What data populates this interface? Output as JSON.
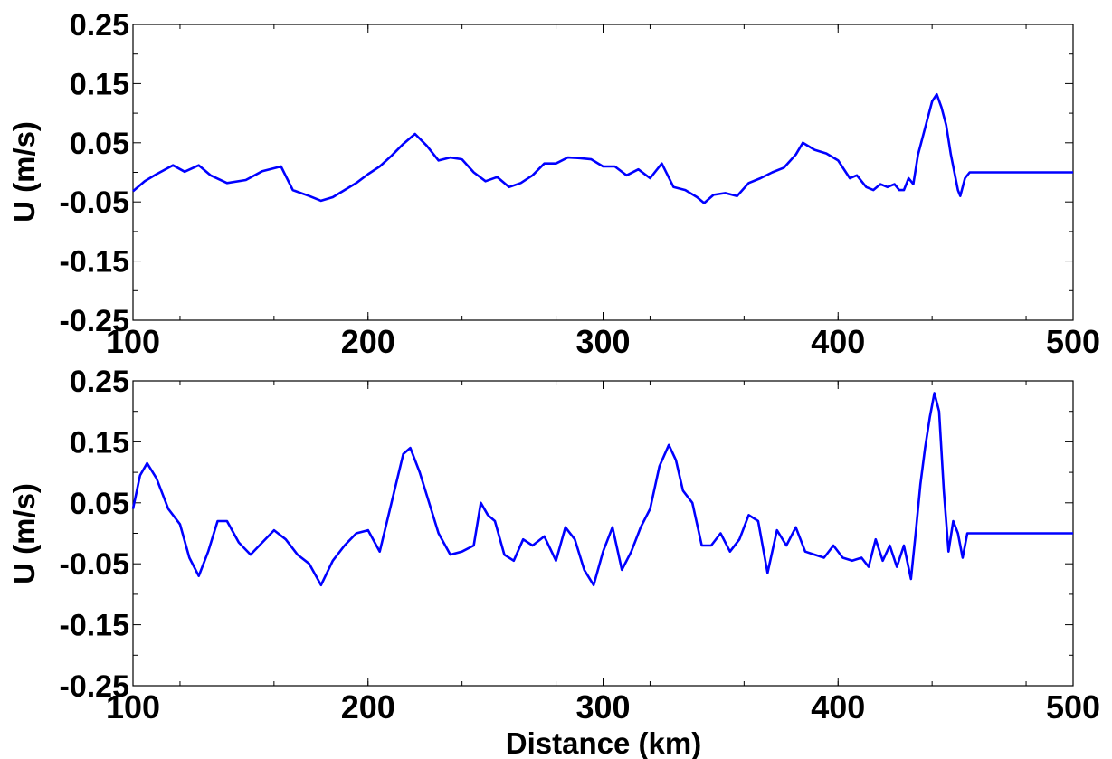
{
  "figure": {
    "xlabel": "Distance (km)"
  },
  "chart_data": [
    {
      "type": "line",
      "title": "",
      "xlabel": "",
      "ylabel": "U (m/s)",
      "xlim": [
        100,
        500
      ],
      "ylim": [
        -0.25,
        0.25
      ],
      "xticks": [
        "100",
        "200",
        "300",
        "400",
        "500"
      ],
      "yticks": [
        "0.25",
        "0.15",
        "0.05",
        "-0.05",
        "-0.15",
        "-0.25"
      ],
      "grid": false,
      "color": "#0000ff",
      "series": [
        {
          "x": [
            100,
            105,
            110,
            117,
            122,
            128,
            133,
            140,
            148,
            155,
            163,
            168,
            175,
            180,
            185,
            190,
            195,
            200,
            205,
            210,
            215,
            220,
            225,
            230,
            235,
            240,
            245,
            250,
            255,
            260,
            265,
            270,
            275,
            280,
            285,
            290,
            295,
            300,
            305,
            310,
            315,
            320,
            325,
            330,
            335,
            340,
            343,
            347,
            352,
            357,
            362,
            367,
            372,
            377,
            382,
            385,
            390,
            395,
            400,
            405,
            408,
            412,
            415,
            418,
            421,
            424,
            426,
            428,
            430,
            432,
            434,
            436,
            438,
            440,
            442,
            444,
            446,
            448,
            450,
            451,
            452,
            454,
            456,
            460,
            480,
            500
          ],
          "y": [
            -0.032,
            -0.015,
            -0.003,
            0.012,
            0.001,
            0.012,
            -0.005,
            -0.018,
            -0.013,
            0.002,
            0.01,
            -0.03,
            -0.04,
            -0.048,
            -0.042,
            -0.03,
            -0.018,
            -0.003,
            0.01,
            0.028,
            0.048,
            0.065,
            0.045,
            0.02,
            0.025,
            0.022,
            0.0,
            -0.015,
            -0.008,
            -0.025,
            -0.018,
            -0.005,
            0.015,
            0.015,
            0.025,
            0.024,
            0.022,
            0.01,
            0.01,
            -0.005,
            0.005,
            -0.01,
            0.015,
            -0.025,
            -0.03,
            -0.042,
            -0.052,
            -0.038,
            -0.035,
            -0.04,
            -0.018,
            -0.01,
            0.0,
            0.008,
            0.03,
            0.05,
            0.038,
            0.032,
            0.02,
            -0.01,
            -0.005,
            -0.025,
            -0.03,
            -0.02,
            -0.025,
            -0.02,
            -0.03,
            -0.03,
            -0.01,
            -0.02,
            0.03,
            0.06,
            0.09,
            0.12,
            0.132,
            0.11,
            0.08,
            0.03,
            -0.01,
            -0.03,
            -0.04,
            -0.01,
            0.0,
            0.0,
            0.0,
            0.0
          ]
        }
      ]
    },
    {
      "type": "line",
      "title": "",
      "xlabel": "Distance (km)",
      "ylabel": "U (m/s)",
      "xlim": [
        100,
        500
      ],
      "ylim": [
        -0.25,
        0.25
      ],
      "xticks": [
        "100",
        "200",
        "300",
        "400",
        "500"
      ],
      "yticks": [
        "0.25",
        "0.15",
        "0.05",
        "-0.05",
        "-0.15",
        "-0.25"
      ],
      "grid": false,
      "color": "#0000ff",
      "series": [
        {
          "x": [
            100,
            103,
            106,
            110,
            115,
            120,
            124,
            128,
            132,
            136,
            140,
            145,
            150,
            155,
            160,
            165,
            170,
            175,
            180,
            185,
            190,
            195,
            200,
            205,
            210,
            215,
            218,
            222,
            226,
            230,
            235,
            240,
            245,
            248,
            251,
            254,
            258,
            262,
            266,
            270,
            275,
            280,
            284,
            288,
            292,
            296,
            300,
            304,
            308,
            312,
            316,
            320,
            324,
            328,
            331,
            334,
            338,
            342,
            346,
            350,
            354,
            358,
            362,
            366,
            370,
            374,
            378,
            382,
            386,
            390,
            394,
            398,
            402,
            406,
            410,
            413,
            416,
            419,
            422,
            425,
            428,
            431,
            433,
            435,
            437,
            439,
            441,
            443,
            445,
            447,
            449,
            451,
            453,
            455,
            480,
            500
          ],
          "y": [
            0.04,
            0.095,
            0.115,
            0.09,
            0.04,
            0.015,
            -0.04,
            -0.07,
            -0.03,
            0.02,
            0.02,
            -0.015,
            -0.035,
            -0.015,
            0.005,
            -0.01,
            -0.035,
            -0.05,
            -0.085,
            -0.045,
            -0.02,
            0.0,
            0.005,
            -0.03,
            0.05,
            0.13,
            0.14,
            0.1,
            0.05,
            0.0,
            -0.035,
            -0.03,
            -0.02,
            0.05,
            0.03,
            0.02,
            -0.035,
            -0.045,
            -0.01,
            -0.02,
            -0.005,
            -0.045,
            0.01,
            -0.01,
            -0.06,
            -0.085,
            -0.03,
            0.01,
            -0.06,
            -0.03,
            0.01,
            0.04,
            0.11,
            0.145,
            0.12,
            0.07,
            0.05,
            -0.02,
            -0.02,
            0.0,
            -0.03,
            -0.01,
            0.03,
            0.02,
            -0.065,
            0.005,
            -0.02,
            0.01,
            -0.03,
            -0.035,
            -0.04,
            -0.02,
            -0.04,
            -0.045,
            -0.04,
            -0.055,
            -0.01,
            -0.045,
            -0.02,
            -0.055,
            -0.02,
            -0.075,
            0.0,
            0.08,
            0.14,
            0.19,
            0.23,
            0.2,
            0.07,
            -0.03,
            0.02,
            0.0,
            -0.04,
            0.0,
            0.0,
            0.0
          ]
        }
      ]
    }
  ]
}
